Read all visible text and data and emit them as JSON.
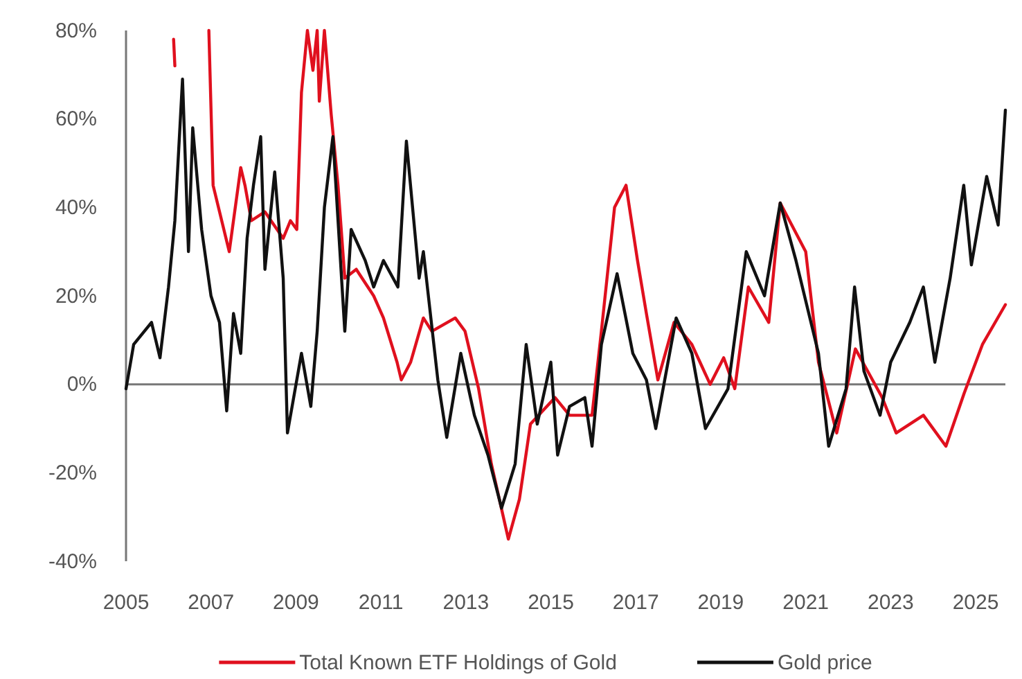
{
  "chart_data": {
    "type": "line",
    "xlim": [
      2005,
      2025.7
    ],
    "xticks": [
      2005,
      2007,
      2009,
      2011,
      2013,
      2015,
      2017,
      2019,
      2021,
      2023,
      2025
    ],
    "ylim": [
      -40,
      80
    ],
    "yticks": [
      {
        "value": -40,
        "label": "-40%"
      },
      {
        "value": -20,
        "label": "-20%"
      },
      {
        "value": 0,
        "label": "0%"
      },
      {
        "value": 20,
        "label": "20%"
      },
      {
        "value": 40,
        "label": "40%"
      },
      {
        "value": 60,
        "label": "60%"
      },
      {
        "value": 80,
        "label": "80%"
      }
    ],
    "grid": false,
    "ref_lines": [
      {
        "axis": "y",
        "value": 0,
        "color": "#777777"
      }
    ],
    "legend": "bottom",
    "line_style": "solid",
    "marker": "none",
    "series": [
      {
        "name": "Total Known ETF Holdings of Gold",
        "color": "#e0101e",
        "x": [
          2006.12,
          2006.15,
          2006.5,
          2006.95,
          2007.05,
          2007.43,
          2007.7,
          2007.8,
          2007.95,
          2008.27,
          2008.7,
          2008.87,
          2009.02,
          2009.13,
          2009.27,
          2009.4,
          2009.5,
          2009.55,
          2009.67,
          2009.83,
          2009.99,
          2010.15,
          2010.42,
          2010.83,
          2011.06,
          2011.38,
          2011.48,
          2011.7,
          2012.0,
          2012.2,
          2012.75,
          2012.98,
          2013.3,
          2013.6,
          2014.0,
          2014.26,
          2014.52,
          2015.1,
          2015.44,
          2015.97,
          2016.19,
          2016.5,
          2016.77,
          2017.04,
          2017.25,
          2017.52,
          2017.9,
          2018.32,
          2018.75,
          2019.07,
          2019.33,
          2019.65,
          2020.13,
          2020.4,
          2021.0,
          2021.3,
          2021.73,
          2022.17,
          2022.8,
          2023.13,
          2023.77,
          2024.3,
          2024.73,
          2025.16,
          2025.7
        ],
        "values": [
          78,
          72,
          null,
          80,
          45,
          30,
          49,
          45,
          37,
          39,
          33,
          37,
          35,
          66,
          80,
          71,
          80,
          64,
          80,
          61,
          45,
          24,
          26,
          20,
          15,
          5,
          1,
          5,
          15,
          12,
          15,
          12,
          -1,
          -18,
          -35,
          -26,
          -9,
          -3,
          -7,
          -7,
          12,
          40,
          45,
          28,
          16,
          1,
          14,
          9,
          0,
          6,
          -1,
          22,
          14,
          41,
          30,
          5,
          -11,
          8,
          -3,
          -11,
          -7,
          -14,
          -2,
          9,
          18
        ]
      },
      {
        "name": "Gold price",
        "color": "#111111",
        "x": [
          2005.0,
          2005.18,
          2005.6,
          2005.8,
          2006.0,
          2006.15,
          2006.33,
          2006.47,
          2006.57,
          2006.78,
          2007.0,
          2007.2,
          2007.37,
          2007.53,
          2007.7,
          2007.85,
          2008.0,
          2008.17,
          2008.27,
          2008.5,
          2008.7,
          2008.8,
          2009.13,
          2009.35,
          2009.5,
          2009.67,
          2009.87,
          2010.15,
          2010.3,
          2010.63,
          2010.83,
          2011.06,
          2011.4,
          2011.6,
          2011.9,
          2012.0,
          2012.34,
          2012.55,
          2012.88,
          2013.2,
          2013.52,
          2013.84,
          2014.16,
          2014.42,
          2014.68,
          2015.0,
          2015.16,
          2015.44,
          2015.8,
          2015.97,
          2016.19,
          2016.56,
          2016.93,
          2017.25,
          2017.47,
          2017.95,
          2018.32,
          2018.64,
          2019.17,
          2019.6,
          2020.03,
          2020.4,
          2020.77,
          2021.3,
          2021.54,
          2021.95,
          2022.15,
          2022.37,
          2022.75,
          2023.0,
          2023.45,
          2023.77,
          2024.04,
          2024.4,
          2024.72,
          2024.9,
          2025.26,
          2025.53,
          2025.7
        ],
        "values": [
          -1,
          9,
          14,
          6,
          22,
          37,
          69,
          30,
          58,
          35,
          20,
          14,
          -6,
          16,
          7,
          33,
          45,
          56,
          26,
          48,
          24,
          -11,
          7,
          -5,
          12,
          40,
          56,
          12,
          35,
          28,
          22,
          28,
          22,
          55,
          24,
          30,
          1,
          -12,
          7,
          -7,
          -16,
          -28,
          -18,
          9,
          -9,
          5,
          -16,
          -5,
          -3,
          -14,
          9,
          25,
          7,
          1,
          -10,
          15,
          7,
          -10,
          -1,
          30,
          20,
          41,
          28,
          7,
          -14,
          -1,
          22,
          3,
          -7,
          5,
          14,
          22,
          5,
          24,
          45,
          27,
          47,
          36,
          62
        ]
      }
    ]
  }
}
